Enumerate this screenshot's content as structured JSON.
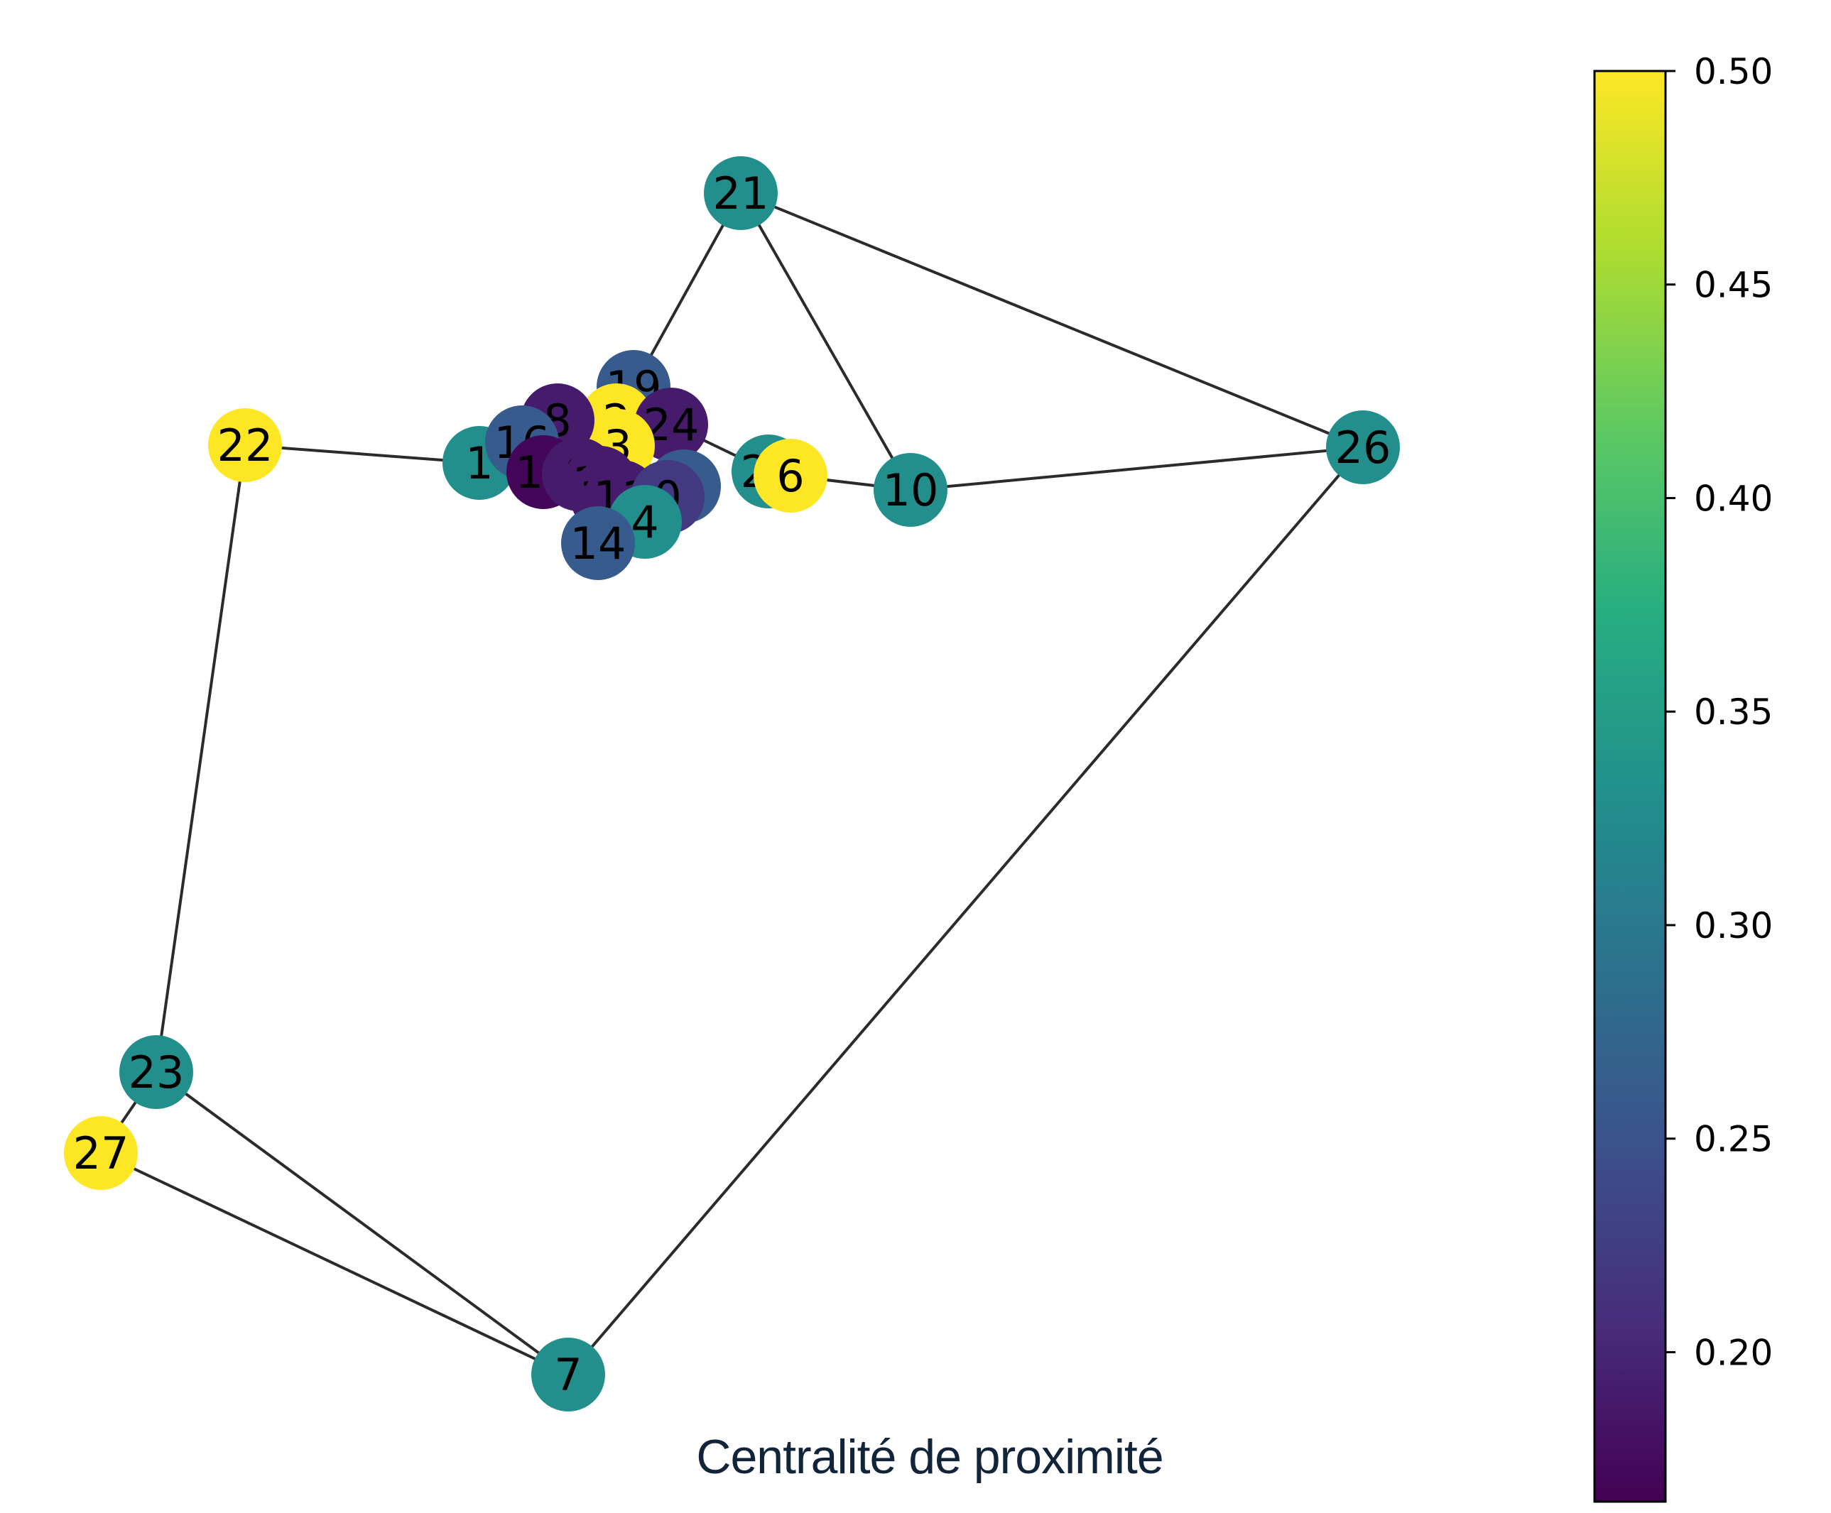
{
  "caption": "Centralité de proximité",
  "colorbar": {
    "colormap": "viridis",
    "ticks": [
      "0.50",
      "0.45",
      "0.40",
      "0.35",
      "0.30",
      "0.25",
      "0.20"
    ],
    "vmin": 0.165,
    "vmax": 0.5
  },
  "graph": {
    "nodes": [
      {
        "id": "21",
        "value": 0.33
      },
      {
        "id": "26",
        "value": 0.33
      },
      {
        "id": "10",
        "value": 0.33
      },
      {
        "id": "22",
        "value": 0.5
      },
      {
        "id": "1",
        "value": 0.33
      },
      {
        "id": "25",
        "value": 0.33
      },
      {
        "id": "6",
        "value": 0.5
      },
      {
        "id": "23",
        "value": 0.33
      },
      {
        "id": "27",
        "value": 0.5
      },
      {
        "id": "7",
        "value": 0.33
      },
      {
        "id": "19",
        "value": 0.26
      },
      {
        "id": "2",
        "value": 0.5
      },
      {
        "id": "24",
        "value": 0.19
      },
      {
        "id": "3",
        "value": 0.5
      },
      {
        "id": "8",
        "value": 0.19
      },
      {
        "id": "16",
        "value": 0.26
      },
      {
        "id": "17",
        "value": 0.17
      },
      {
        "id": "9",
        "value": 0.19
      },
      {
        "id": "12",
        "value": 0.19
      },
      {
        "id": "13",
        "value": 0.19
      },
      {
        "id": "11",
        "value": 0.19
      },
      {
        "id": "5",
        "value": 0.26
      },
      {
        "id": "0",
        "value": 0.22
      },
      {
        "id": "4",
        "value": 0.33
      },
      {
        "id": "14",
        "value": 0.26
      }
    ],
    "edges": [
      [
        "21",
        "26"
      ],
      [
        "21",
        "10"
      ],
      [
        "21",
        "19"
      ],
      [
        "26",
        "10"
      ],
      [
        "26",
        "7"
      ],
      [
        "10",
        "6"
      ],
      [
        "22",
        "1"
      ],
      [
        "22",
        "23"
      ],
      [
        "23",
        "27"
      ],
      [
        "23",
        "7"
      ],
      [
        "27",
        "7"
      ],
      [
        "1",
        "17"
      ],
      [
        "24",
        "25"
      ],
      [
        "2",
        "24"
      ],
      [
        "3",
        "5"
      ]
    ]
  }
}
